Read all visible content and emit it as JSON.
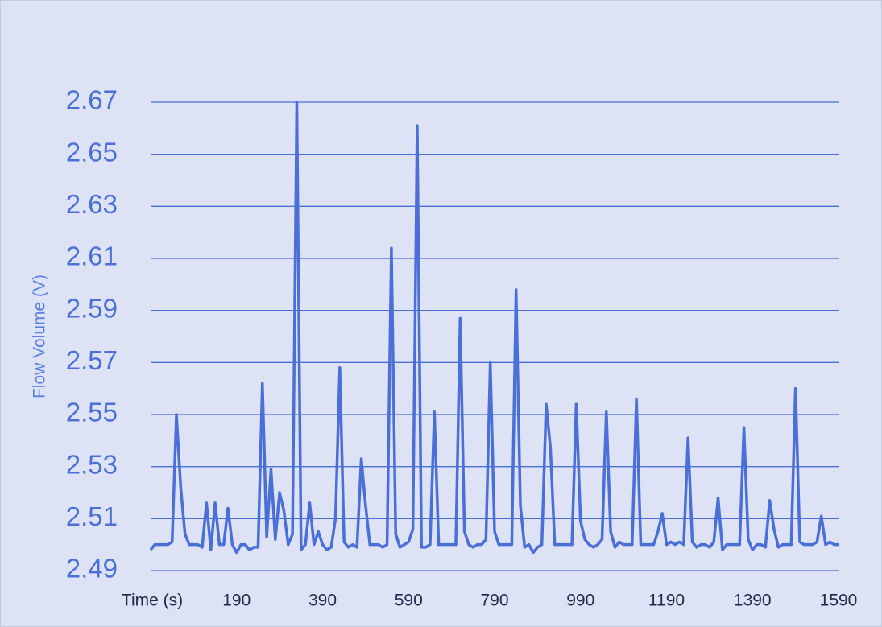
{
  "chart_data": {
    "type": "line",
    "y_label": "Flow Volume (V)",
    "categories": [
      "Time (s)",
      null,
      null,
      null,
      null,
      null,
      null,
      null,
      null,
      null,
      null,
      null,
      null,
      null,
      null,
      null,
      null,
      null,
      null,
      null,
      190,
      null,
      null,
      null,
      null,
      null,
      null,
      null,
      null,
      null,
      null,
      null,
      null,
      null,
      null,
      null,
      null,
      null,
      null,
      null,
      390,
      null,
      null,
      null,
      null,
      null,
      null,
      null,
      null,
      null,
      null,
      null,
      null,
      null,
      null,
      null,
      null,
      null,
      null,
      null,
      590,
      null,
      null,
      null,
      null,
      null,
      null,
      null,
      null,
      null,
      null,
      null,
      null,
      null,
      null,
      null,
      null,
      null,
      null,
      null,
      790,
      null,
      null,
      null,
      null,
      null,
      null,
      null,
      null,
      null,
      null,
      null,
      null,
      null,
      null,
      null,
      null,
      null,
      null,
      null,
      990,
      null,
      null,
      null,
      null,
      null,
      null,
      null,
      null,
      null,
      null,
      null,
      null,
      null,
      null,
      null,
      null,
      null,
      null,
      null,
      1190,
      null,
      null,
      null,
      null,
      null,
      null,
      null,
      null,
      null,
      null,
      null,
      null,
      null,
      null,
      null,
      null,
      null,
      null,
      null,
      1390,
      null,
      null,
      null,
      null,
      null,
      null,
      null,
      null,
      null,
      null,
      null,
      null,
      null,
      null,
      null,
      null,
      null,
      null,
      null,
      1590
    ],
    "values": [
      2.498,
      2.5,
      2.5,
      2.5,
      2.5,
      2.501,
      2.55,
      2.522,
      2.504,
      2.5,
      2.5,
      2.5,
      2.499,
      2.516,
      2.498,
      2.516,
      2.5,
      2.5,
      2.514,
      2.5,
      2.497,
      2.5,
      2.5,
      2.498,
      2.499,
      2.499,
      2.562,
      2.503,
      2.529,
      2.502,
      2.52,
      2.513,
      2.5,
      2.504,
      2.67,
      2.498,
      2.5,
      2.516,
      2.5,
      2.505,
      2.5,
      2.498,
      2.499,
      2.51,
      2.568,
      2.501,
      2.499,
      2.5,
      2.499,
      2.533,
      2.515,
      2.5,
      2.5,
      2.5,
      2.499,
      2.5,
      2.614,
      2.504,
      2.499,
      2.5,
      2.501,
      2.506,
      2.661,
      2.499,
      2.499,
      2.5,
      2.551,
      2.5,
      2.5,
      2.5,
      2.5,
      2.5,
      2.587,
      2.505,
      2.5,
      2.499,
      2.5,
      2.5,
      2.502,
      2.57,
      2.505,
      2.5,
      2.5,
      2.5,
      2.5,
      2.598,
      2.515,
      2.499,
      2.5,
      2.497,
      2.499,
      2.5,
      2.554,
      2.537,
      2.5,
      2.5,
      2.5,
      2.5,
      2.5,
      2.554,
      2.509,
      2.502,
      2.5,
      2.499,
      2.5,
      2.502,
      2.551,
      2.505,
      2.499,
      2.501,
      2.5,
      2.5,
      2.5,
      2.556,
      2.5,
      2.5,
      2.5,
      2.5,
      2.505,
      2.512,
      2.5,
      2.501,
      2.5,
      2.501,
      2.5,
      2.541,
      2.501,
      2.499,
      2.5,
      2.5,
      2.499,
      2.501,
      2.518,
      2.498,
      2.5,
      2.5,
      2.5,
      2.5,
      2.545,
      2.502,
      2.498,
      2.5,
      2.5,
      2.499,
      2.517,
      2.506,
      2.499,
      2.5,
      2.5,
      2.5,
      2.56,
      2.501,
      2.5,
      2.5,
      2.5,
      2.501,
      2.511,
      2.5,
      2.501,
      2.5,
      2.5
    ],
    "color": "#4a70d8",
    "ylim": [
      2.49,
      2.67
    ],
    "yticks": [
      2.49,
      2.51,
      2.53,
      2.55,
      2.57,
      2.59,
      2.61,
      2.63,
      2.65,
      2.67
    ],
    "grid": true
  }
}
